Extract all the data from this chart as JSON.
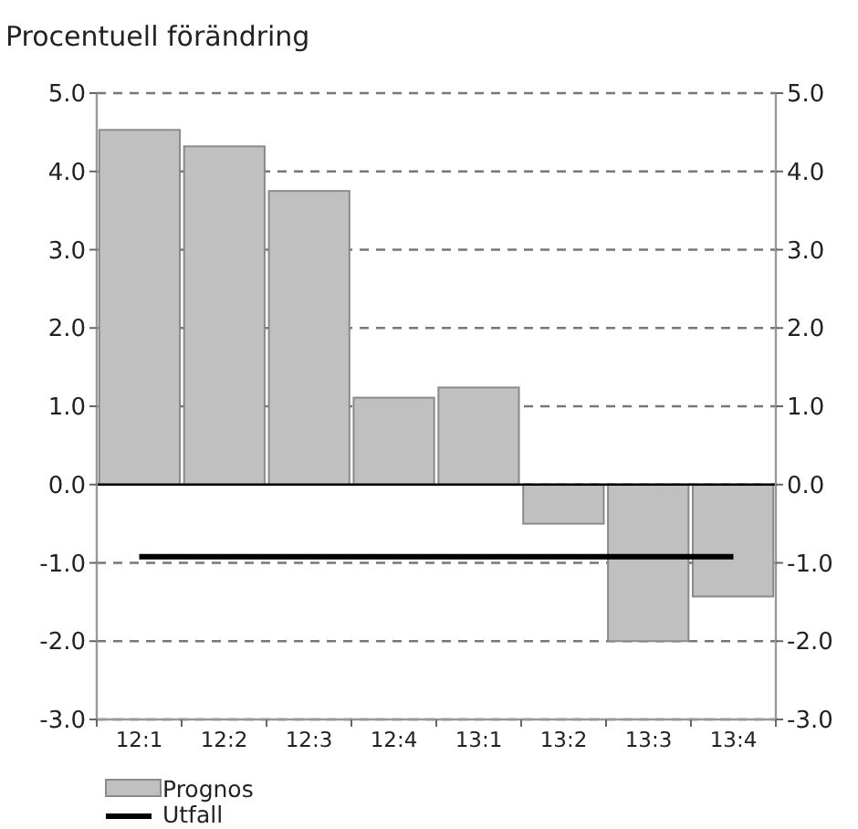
{
  "chart_data": {
    "type": "bar",
    "title": "Procentuell förändring",
    "categories": [
      "12:1",
      "12:2",
      "12:3",
      "12:4",
      "13:1",
      "13:2",
      "13:3",
      "13:4"
    ],
    "series": [
      {
        "name": "Prognos",
        "color": "#c0c0c0",
        "values": [
          4.53,
          4.32,
          3.75,
          1.11,
          1.24,
          -0.5,
          -2.0,
          -1.43
        ]
      },
      {
        "name": "Utfall",
        "type": "line",
        "color": "#000000",
        "values": [
          -0.92,
          -0.92,
          -0.92,
          -0.92,
          -0.92,
          -0.92,
          -0.92,
          -0.92
        ]
      }
    ],
    "ylim": [
      -3,
      5
    ],
    "yticks": [
      {
        "value": -3,
        "label": "-3.0"
      },
      {
        "value": -2,
        "label": "-2.0"
      },
      {
        "value": -1,
        "label": "-1.0"
      },
      {
        "value": 0,
        "label": "0.0"
      },
      {
        "value": 1,
        "label": "1.0"
      },
      {
        "value": 2,
        "label": "2.0"
      },
      {
        "value": 3,
        "label": "3.0"
      },
      {
        "value": 4,
        "label": "4.0"
      },
      {
        "value": 5,
        "label": "5.0"
      }
    ],
    "y2lim": [
      -3,
      5
    ],
    "y2ticks": [
      {
        "value": -3,
        "label": "-3.0"
      },
      {
        "value": -2,
        "label": "-2.0"
      },
      {
        "value": -1,
        "label": "-1.0"
      },
      {
        "value": 0,
        "label": "0.0"
      },
      {
        "value": 1,
        "label": "1.0"
      },
      {
        "value": 2,
        "label": "2.0"
      },
      {
        "value": 3,
        "label": "3.0"
      },
      {
        "value": 4,
        "label": "4.0"
      },
      {
        "value": 5,
        "label": "5.0"
      }
    ],
    "grid": "y",
    "legend": "bottom",
    "marker": "none",
    "line_style": "solid"
  }
}
